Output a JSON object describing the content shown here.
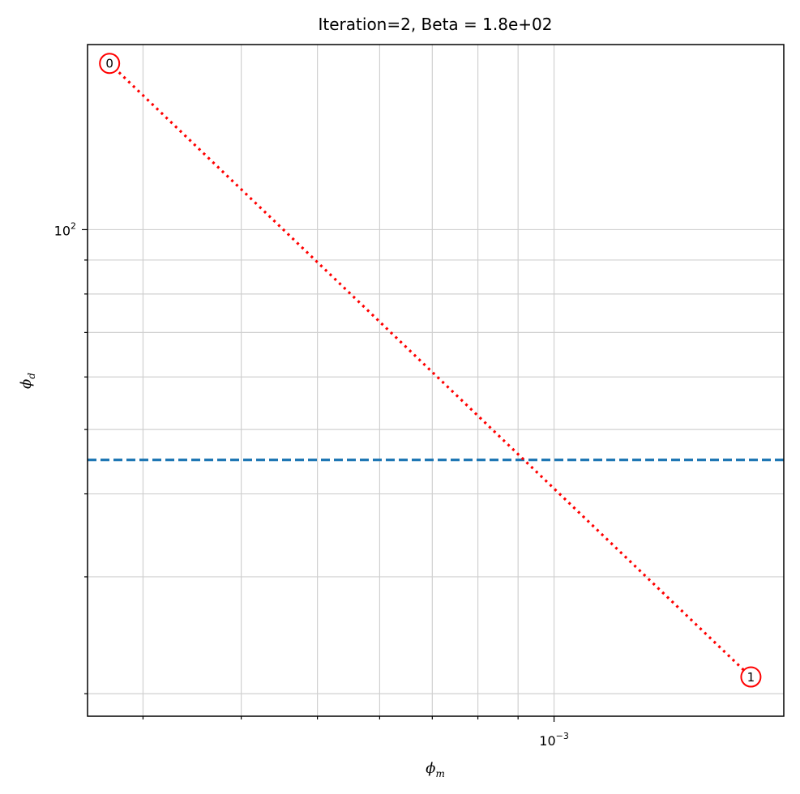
{
  "chart_data": {
    "type": "line",
    "title": "Iteration=2, Beta = 1.8e+02",
    "xlabel": "ϕ_m",
    "ylabel": "ϕ_d",
    "xscale": "log",
    "yscale": "log",
    "xlim": [
      0.000255,
      0.00196
    ],
    "ylim": [
      18.5,
      190
    ],
    "x_tick_labels": [
      {
        "value": 0.001,
        "base": "10",
        "exponent": "−3"
      }
    ],
    "y_tick_labels": [
      {
        "value": 100,
        "base": "10",
        "exponent": "2"
      }
    ],
    "grid": true,
    "series": [
      {
        "x": [
          0.000272,
          0.00178
        ],
        "y": [
          178,
          21.2
        ],
        "point_labels": [
          "0",
          "1"
        ],
        "color": "#ff0000",
        "linestyle": "dotted",
        "marker": "open-circle"
      }
    ],
    "hlines": [
      {
        "y": 45,
        "color": "#1f77b4",
        "linestyle": "dashed"
      }
    ]
  }
}
